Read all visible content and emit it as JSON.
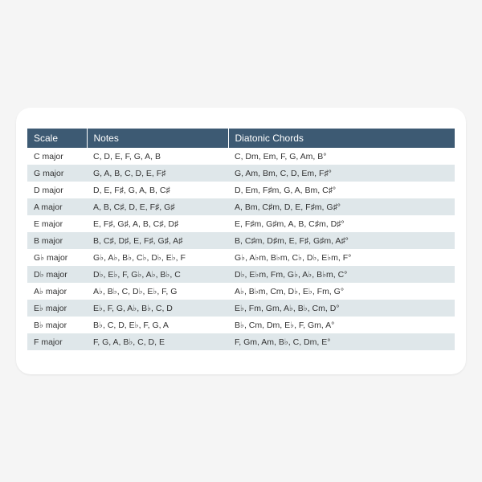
{
  "table": {
    "header_bg": "#3d5a73",
    "header_fg": "#ffffff",
    "row_even_bg": "#ffffff",
    "row_odd_bg": "#dfe7ea",
    "columns": [
      "Scale",
      "Notes",
      "Diatonic Chords"
    ],
    "rows": [
      {
        "scale": "C major",
        "notes": "C,  D,  E,  F,  G,  A,  B",
        "chords": "C,  Dm,  Em,  F,  G,  Am,  B°"
      },
      {
        "scale": "G major",
        "notes": "G,  A,  B,  C,  D,  E,  F♯",
        "chords": "G,  Am,  Bm,  C,  D,  Em,  F♯°"
      },
      {
        "scale": "D major",
        "notes": "D,  E,  F♯,  G,  A,  B,  C♯",
        "chords": "D,  Em,  F♯m,  G,  A,  Bm,  C♯°"
      },
      {
        "scale": "A major",
        "notes": "A,  B,  C♯,  D,  E,  F♯,  G♯",
        "chords": "A,  Bm,  C♯m,  D,  E,  F♯m,  G♯°"
      },
      {
        "scale": "E major",
        "notes": "E,  F♯,  G♯,  A,  B,  C♯,  D♯",
        "chords": "E,  F♯m,  G♯m,  A,  B,  C♯m,  D♯°"
      },
      {
        "scale": "B major",
        "notes": "B,  C♯,  D♯,  E,  F♯,  G♯,  A♯",
        "chords": "B,  C♯m,  D♯m,  E,  F♯,  G♯m,  A♯°"
      },
      {
        "scale": "G♭ major",
        "notes": "G♭,  A♭,  B♭,  C♭,  D♭,  E♭,  F",
        "chords": "G♭,  A♭m,  B♭m,  C♭,  D♭,  E♭m,  F°"
      },
      {
        "scale": "D♭ major",
        "notes": "D♭,  E♭,  F,  G♭,  A♭,  B♭,  C",
        "chords": "D♭,  E♭m,  Fm,  G♭,  A♭,  B♭m,  C°"
      },
      {
        "scale": "A♭ major",
        "notes": "A♭,  B♭,  C,  D♭,  E♭,  F,  G",
        "chords": "A♭,  B♭m,  Cm,  D♭,  E♭,  Fm,  G°"
      },
      {
        "scale": "E♭ major",
        "notes": "E♭,  F,  G,  A♭,  B♭,  C,  D",
        "chords": "E♭,  Fm,  Gm,  A♭,  B♭,  Cm,  D°"
      },
      {
        "scale": "B♭ major",
        "notes": "B♭,  C,  D,  E♭,  F,  G,  A",
        "chords": "B♭,  Cm,  Dm,  E♭,  F,  Gm,  A°"
      },
      {
        "scale": "F major",
        "notes": "F,  G,  A,  B♭,  C,  D,  E",
        "chords": "F,  Gm,  Am,  B♭,  C,  Dm,  E°"
      }
    ]
  }
}
